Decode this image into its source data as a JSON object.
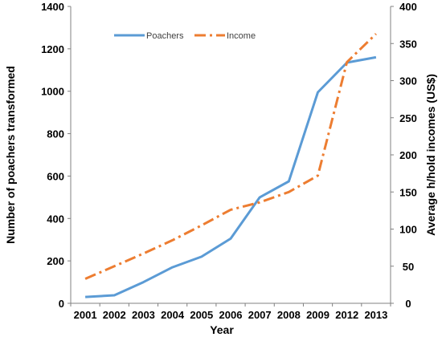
{
  "chart_data": {
    "type": "line",
    "title": "",
    "xlabel": "Year",
    "ylabel_left": "Number of poachers transformed",
    "ylabel_right": "Average h/hold incomes (US$)",
    "categories": [
      "2001",
      "2002",
      "2003",
      "2004",
      "2005",
      "2006",
      "2007",
      "2008",
      "2009",
      "2012",
      "2013"
    ],
    "ylim_left": [
      0,
      1400
    ],
    "ylim_right": [
      0,
      400
    ],
    "yticks_left": [
      "0",
      "200",
      "400",
      "600",
      "800",
      "1000",
      "1200",
      "1400"
    ],
    "yticks_right": [
      "0",
      "50",
      "100",
      "150",
      "200",
      "250",
      "300",
      "350",
      "400"
    ],
    "grid": false,
    "legend_position": "top-center",
    "series": [
      {
        "name": "Poachers",
        "axis": "left",
        "style": "solid",
        "color": "#5b9bd5",
        "values": [
          30,
          38,
          100,
          170,
          220,
          305,
          500,
          575,
          995,
          1135,
          1160
        ]
      },
      {
        "name": "Income",
        "axis": "right",
        "style": "dash-dot",
        "color": "#ed7d31",
        "values": [
          33,
          50,
          67,
          85,
          105,
          126,
          136,
          150,
          172,
          325,
          363
        ]
      }
    ]
  }
}
